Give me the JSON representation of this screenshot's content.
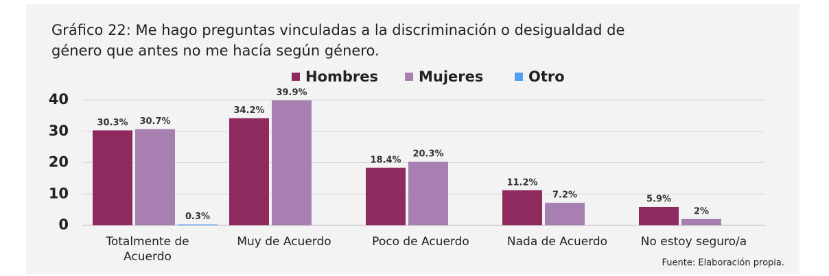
{
  "chart_data": {
    "type": "bar",
    "title": "Gráfico 22: Me hago preguntas vinculadas a la discriminación o desigualdad de",
    "subtitle": "género que antes no me hacía según género.",
    "categories": [
      "Totalmente de Acuerdo",
      "Muy de Acuerdo",
      "Poco de Acuerdo",
      "Nada de Acuerdo",
      "No estoy seguro/a"
    ],
    "series": [
      {
        "name": "Hombres",
        "color": "#8e2a5e",
        "values": [
          30.3,
          34.2,
          18.4,
          11.2,
          5.9
        ],
        "value_labels": [
          "30.3%",
          "34.2%",
          "18.4%",
          "11.2%",
          "5.9%"
        ]
      },
      {
        "name": "Mujeres",
        "color": "#a77fb1",
        "values": [
          30.7,
          39.9,
          20.3,
          7.2,
          2
        ],
        "value_labels": [
          "30.7%",
          "39.9%",
          "20.3%",
          "7.2%",
          "2%"
        ]
      },
      {
        "name": "Otro",
        "color": "#4f9ef2",
        "values": [
          0.3,
          null,
          null,
          null,
          null
        ],
        "value_labels": [
          "0.3%",
          null,
          null,
          null,
          null
        ]
      }
    ],
    "ylim": [
      0,
      40
    ],
    "yticks": [
      0,
      10,
      20,
      30,
      40
    ],
    "grid": true,
    "source": "Fuente: Elaboración propia."
  }
}
